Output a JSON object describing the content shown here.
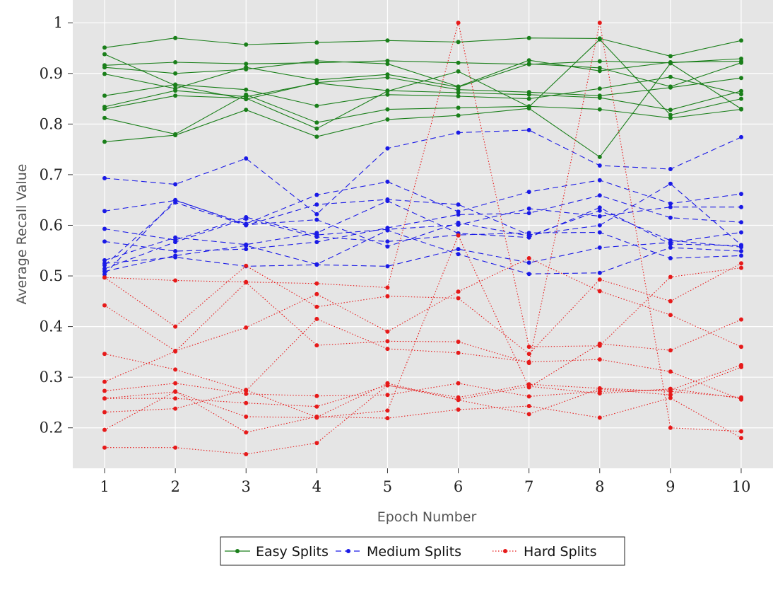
{
  "chart_data": {
    "type": "line",
    "title": "",
    "xlabel": "Epoch Number",
    "ylabel": "Average Recall Value",
    "x": [
      1,
      2,
      3,
      4,
      5,
      6,
      7,
      8,
      9,
      10
    ],
    "xlim": [
      0.55,
      10.45
    ],
    "ylim": [
      0.12,
      1.045
    ],
    "y_ticks": [
      0.2,
      0.3,
      0.4,
      0.5,
      0.6,
      0.7,
      0.8,
      0.9,
      1
    ],
    "y_tick_labels": [
      "0.2",
      "0.3",
      "0.4",
      "0.5",
      "0.6",
      "0.7",
      "0.8",
      "0.9",
      "1"
    ],
    "x_tick_labels": [
      "1",
      "2",
      "3",
      "4",
      "5",
      "6",
      "7",
      "8",
      "9",
      "10"
    ],
    "grid": true,
    "legend_position": "bottom-center",
    "groups": [
      {
        "name": "Easy Splits",
        "color": "#1a7f1a",
        "line_style": "solid",
        "series": [
          {
            "values": [
              0.951,
              0.97,
              0.957,
              0.961,
              0.965,
              0.962,
              0.97,
              0.969,
              0.934,
              0.965
            ]
          },
          {
            "values": [
              0.938,
              0.876,
              0.849,
              0.882,
              0.892,
              0.868,
              0.863,
              0.856,
              0.872,
              0.891
            ]
          },
          {
            "values": [
              0.916,
              0.922,
              0.919,
              0.921,
              0.925,
              0.921,
              0.918,
              0.924,
              0.921,
              0.929
            ]
          },
          {
            "values": [
              0.912,
              0.9,
              0.908,
              0.925,
              0.919,
              0.874,
              0.926,
              0.905,
              0.922,
              0.924
            ]
          },
          {
            "values": [
              0.899,
              0.87,
              0.912,
              0.887,
              0.898,
              0.873,
              0.919,
              0.911,
              0.874,
              0.921
            ]
          },
          {
            "values": [
              0.856,
              0.878,
              0.868,
              0.836,
              0.858,
              0.855,
              0.85,
              0.87,
              0.893,
              0.859
            ]
          },
          {
            "values": [
              0.834,
              0.866,
              0.854,
              0.881,
              0.866,
              0.862,
              0.858,
              0.852,
              0.828,
              0.865
            ]
          },
          {
            "values": [
              0.83,
              0.856,
              0.851,
              0.791,
              0.865,
              0.904,
              0.834,
              0.967,
              0.818,
              0.85
            ]
          },
          {
            "values": [
              0.812,
              0.78,
              0.858,
              0.803,
              0.829,
              0.832,
              0.835,
              0.829,
              0.812,
              0.829
            ]
          },
          {
            "values": [
              0.765,
              0.778,
              0.828,
              0.775,
              0.809,
              0.817,
              0.831,
              0.735,
              0.92,
              0.83
            ]
          }
        ]
      },
      {
        "name": "Medium Splits",
        "color": "#1a1ae6",
        "line_style": "dashed",
        "series": [
          {
            "values": [
              0.693,
              0.681,
              0.732,
              0.622,
              0.752,
              0.783,
              0.788,
              0.718,
              0.711,
              0.774
            ]
          },
          {
            "values": [
              0.628,
              0.649,
              0.603,
              0.66,
              0.686,
              0.627,
              0.666,
              0.689,
              0.643,
              0.662
            ]
          },
          {
            "values": [
              0.593,
              0.571,
              0.616,
              0.581,
              0.592,
              0.601,
              0.633,
              0.618,
              0.636,
              0.636
            ]
          },
          {
            "values": [
              0.568,
              0.549,
              0.553,
              0.567,
              0.595,
              0.621,
              0.624,
              0.659,
              0.615,
              0.606
            ]
          },
          {
            "values": [
              0.531,
              0.576,
              0.562,
              0.585,
              0.648,
              0.584,
              0.576,
              0.635,
              0.563,
              0.56
            ]
          },
          {
            "values": [
              0.525,
              0.537,
              0.519,
              0.522,
              0.519,
              0.553,
              0.526,
              0.556,
              0.566,
              0.586
            ]
          },
          {
            "values": [
              0.521,
              0.645,
              0.6,
              0.641,
              0.651,
              0.641,
              0.581,
              0.6,
              0.682,
              0.561
            ]
          },
          {
            "values": [
              0.514,
              0.567,
              0.613,
              0.577,
              0.568,
              0.581,
              0.585,
              0.586,
              0.535,
              0.54
            ]
          },
          {
            "values": [
              0.509,
              0.54,
              0.56,
              0.523,
              0.59,
              0.543,
              0.504,
              0.506,
              0.556,
              0.549
            ]
          },
          {
            "values": [
              0.503,
              0.65,
              0.601,
              0.611,
              0.558,
              0.605,
              0.579,
              0.629,
              0.57,
              0.557
            ]
          }
        ]
      },
      {
        "name": "Hard Splits",
        "color": "#e61a1a",
        "line_style": "dotted",
        "series": [
          {
            "values": [
              0.497,
              0.491,
              0.488,
              0.485,
              0.477,
              1.0,
              0.36,
              0.362,
              0.498,
              0.516
            ]
          },
          {
            "values": [
              0.497,
              0.4,
              0.52,
              0.439,
              0.46,
              0.456,
              0.346,
              0.493,
              0.45,
              0.525
            ]
          },
          {
            "values": [
              0.442,
              0.352,
              0.398,
              0.464,
              0.39,
              0.469,
              0.535,
              0.47,
              0.423,
              0.36
            ]
          },
          {
            "values": [
              0.346,
              0.315,
              0.273,
              0.415,
              0.356,
              0.348,
              0.33,
              0.335,
              0.311,
              0.256
            ]
          },
          {
            "values": [
              0.291,
              0.351,
              0.487,
              0.363,
              0.371,
              0.37,
              0.328,
              1.0,
              0.2,
              0.193
            ]
          },
          {
            "values": [
              0.273,
              0.288,
              0.267,
              0.263,
              0.265,
              0.288,
              0.262,
              0.272,
              0.275,
              0.324
            ]
          },
          {
            "values": [
              0.258,
              0.258,
              0.249,
              0.242,
              0.284,
              0.26,
              0.286,
              0.278,
              0.272,
              0.26
            ]
          },
          {
            "values": [
              0.258,
              0.271,
              0.222,
              0.22,
              0.234,
              0.58,
              0.28,
              0.366,
              0.353,
              0.414
            ]
          },
          {
            "values": [
              0.231,
              0.238,
              0.275,
              0.221,
              0.288,
              0.255,
              0.227,
              0.277,
              0.265,
              0.32
            ]
          },
          {
            "values": [
              0.196,
              0.272,
              0.191,
              0.222,
              0.219,
              0.236,
              0.243,
              0.22,
              0.259,
              0.18
            ]
          },
          {
            "values": [
              0.161,
              0.161,
              0.148,
              0.17,
              0.284,
              0.256,
              0.282,
              0.268,
              0.277,
              0.258
            ]
          }
        ]
      }
    ]
  }
}
